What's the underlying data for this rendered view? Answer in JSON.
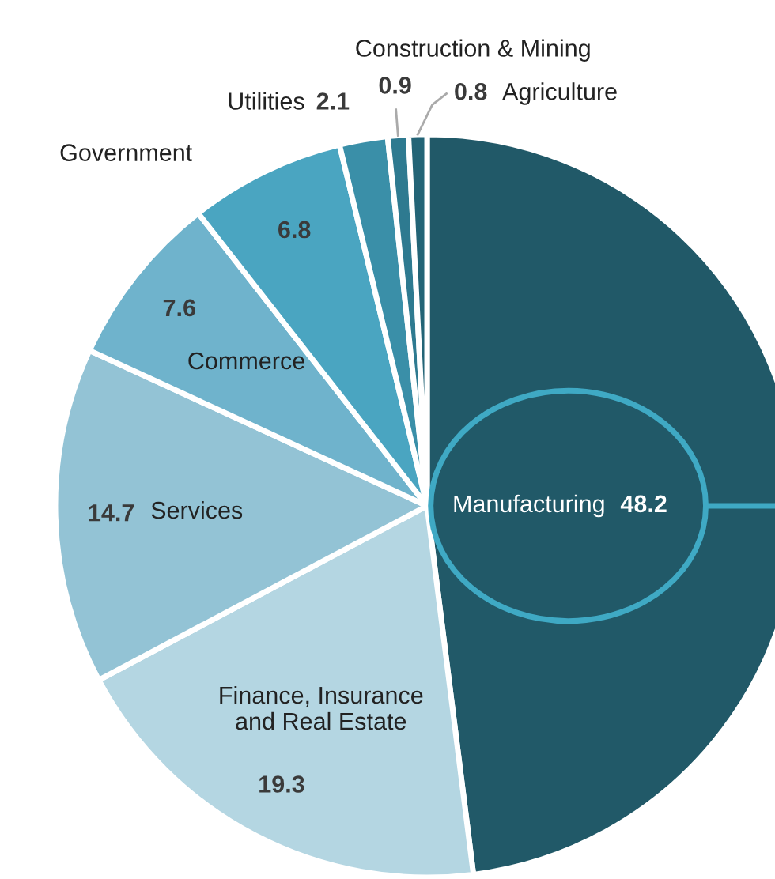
{
  "chart_data": {
    "type": "pie",
    "categories": [
      "Manufacturing",
      "Finance, Insurance\nand Real Estate",
      "Services",
      "Commerce",
      "Government",
      "Utilities",
      "Construction & Mining",
      "Agriculture"
    ],
    "values": [
      48.2,
      19.3,
      14.7,
      7.6,
      6.8,
      2.1,
      0.9,
      0.8
    ],
    "colors": [
      "#215968",
      "#b4d6e2",
      "#93c3d5",
      "#6fb3cc",
      "#4aa5c1",
      "#3a8fa8",
      "#2e7a90",
      "#236476"
    ],
    "data_labels": true,
    "legend": false
  }
}
